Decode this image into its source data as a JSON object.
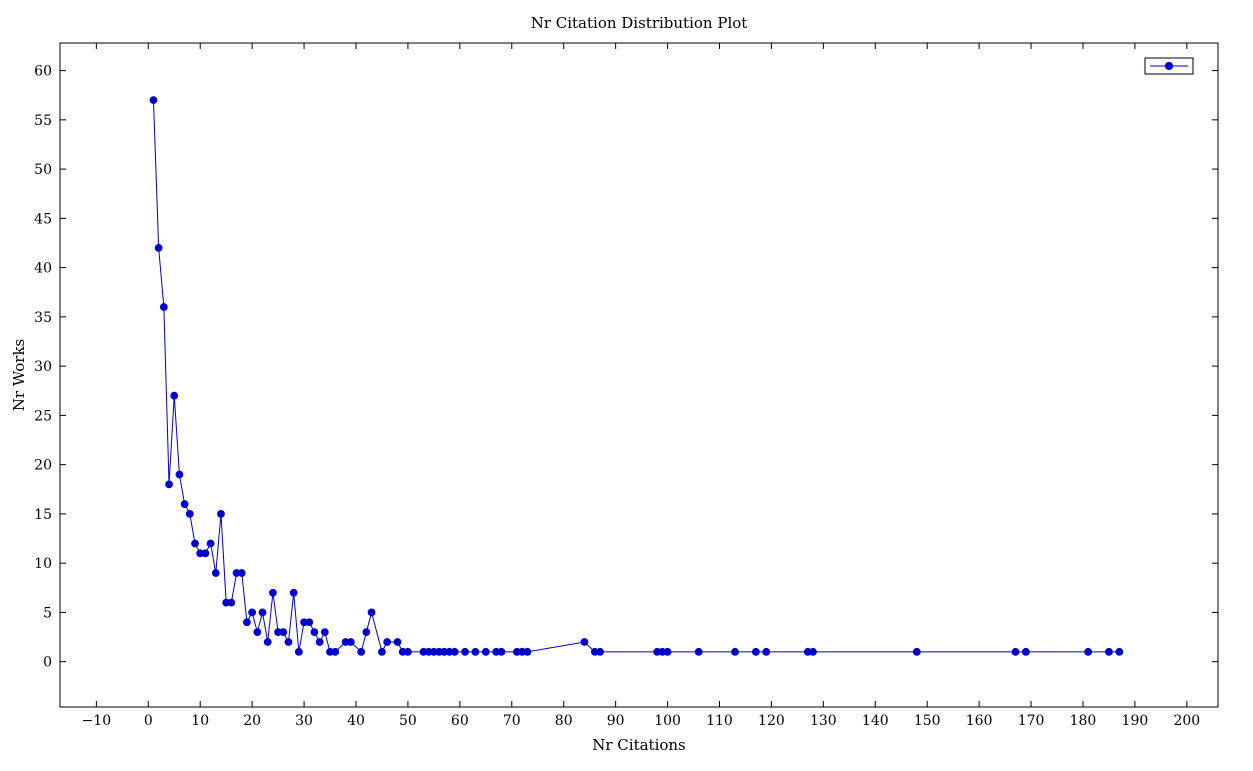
{
  "chart_data": {
    "type": "line",
    "title": "Nr Citation Distribution Plot",
    "xlabel": "Nr Citations",
    "ylabel": "Nr Works",
    "xlim": [
      -17,
      206
    ],
    "ylim": [
      -4.6,
      62.8
    ],
    "xticks": [
      -10,
      0,
      10,
      20,
      30,
      40,
      50,
      60,
      70,
      80,
      90,
      100,
      110,
      120,
      130,
      140,
      150,
      160,
      170,
      180,
      190,
      200
    ],
    "yticks": [
      0,
      5,
      10,
      15,
      20,
      25,
      30,
      35,
      40,
      45,
      50,
      55,
      60
    ],
    "grid": false,
    "legend_position": "top-right",
    "series": [
      {
        "color": "#0000cc",
        "marker": "circle",
        "x": [
          1,
          2,
          3,
          4,
          5,
          6,
          7,
          8,
          9,
          10,
          11,
          12,
          13,
          14,
          15,
          16,
          17,
          18,
          19,
          20,
          21,
          22,
          23,
          24,
          25,
          26,
          27,
          28,
          29,
          30,
          31,
          32,
          33,
          34,
          35,
          36,
          38,
          39,
          41,
          42,
          43,
          45,
          46,
          48,
          49,
          50,
          53,
          54,
          55,
          56,
          57,
          58,
          59,
          61,
          63,
          65,
          67,
          68,
          71,
          72,
          73,
          84,
          86,
          87,
          98,
          99,
          100,
          106,
          113,
          117,
          119,
          127,
          128,
          148,
          167,
          169,
          181,
          185,
          187
        ],
        "y": [
          57,
          42,
          36,
          18,
          27,
          19,
          16,
          15,
          12,
          11,
          11,
          12,
          9,
          15,
          6,
          6,
          9,
          9,
          4,
          5,
          3,
          5,
          2,
          7,
          3,
          3,
          2,
          7,
          1,
          4,
          4,
          3,
          2,
          3,
          1,
          1,
          2,
          2,
          1,
          3,
          5,
          1,
          2,
          2,
          1,
          1,
          1,
          1,
          1,
          1,
          1,
          1,
          1,
          1,
          1,
          1,
          1,
          1,
          1,
          1,
          1,
          2,
          1,
          1,
          1,
          1,
          1,
          1,
          1,
          1,
          1,
          1,
          1,
          1,
          1,
          1,
          1,
          1,
          1
        ]
      }
    ]
  }
}
